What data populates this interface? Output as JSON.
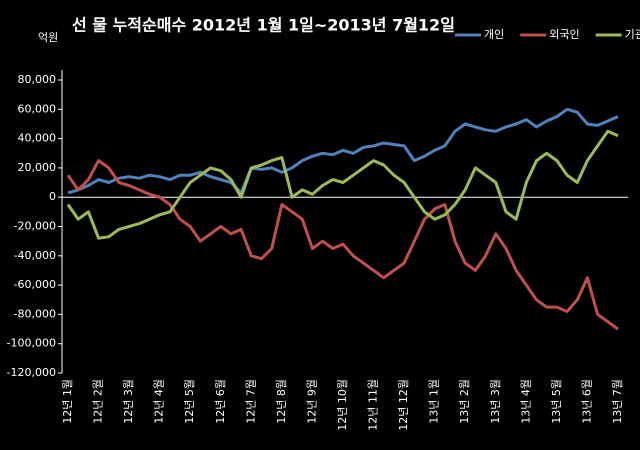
{
  "chart_data": {
    "type": "line",
    "title": "선 물 누적순매수 2012년 1월 1일~2013년 7월12일",
    "y_label": "억원",
    "categories": [
      "12년 1월",
      null,
      null,
      "12년 2월",
      null,
      null,
      "12년 3월",
      null,
      null,
      "12년 4월",
      null,
      null,
      "12년 5월",
      null,
      null,
      "12년 6월",
      null,
      null,
      "12년 7월",
      null,
      null,
      "12년 8월",
      null,
      null,
      "12년 9월",
      null,
      null,
      "12년 10월",
      null,
      null,
      "12년 11월",
      null,
      null,
      "12년 12월",
      null,
      null,
      "13년 1월",
      null,
      null,
      "13년 2월",
      null,
      null,
      "13년 3월",
      null,
      null,
      "13년 4월",
      null,
      null,
      "13년 5월",
      null,
      null,
      "13년 6월",
      null,
      null,
      "13년 7월"
    ],
    "series": [
      {
        "name": "개인",
        "color": "#4f81bd",
        "values": [
          3000,
          5000,
          8000,
          12000,
          10000,
          13000,
          14000,
          13000,
          15000,
          14000,
          12000,
          15000,
          15000,
          17000,
          14000,
          12000,
          10000,
          3000,
          20000,
          19000,
          20000,
          17000,
          20000,
          25000,
          28000,
          30000,
          29000,
          32000,
          30000,
          34000,
          35000,
          37000,
          36000,
          35000,
          25000,
          28000,
          32000,
          35000,
          45000,
          50000,
          48000,
          46000,
          45000,
          48000,
          50000,
          53000,
          48000,
          52000,
          55000,
          60000,
          58000,
          50000,
          49000,
          52000,
          55000
        ]
      },
      {
        "name": "외국인",
        "color": "#c0504d",
        "values": [
          15000,
          5000,
          12000,
          25000,
          20000,
          10000,
          8000,
          5000,
          2000,
          0,
          -5000,
          -15000,
          -20000,
          -30000,
          -25000,
          -20000,
          -25000,
          -22000,
          -40000,
          -42000,
          -35000,
          -5000,
          -10000,
          -15000,
          -35000,
          -30000,
          -35000,
          -32000,
          -40000,
          -45000,
          -50000,
          -55000,
          -50000,
          -45000,
          -30000,
          -15000,
          -8000,
          -5000,
          -30000,
          -45000,
          -50000,
          -40000,
          -25000,
          -35000,
          -50000,
          -60000,
          -70000,
          -75000,
          -75000,
          -78000,
          -70000,
          -55000,
          -80000,
          -85000,
          -90000
        ]
      },
      {
        "name": "기관",
        "color": "#9bbb59",
        "values": [
          -5000,
          -15000,
          -10000,
          -28000,
          -27000,
          -22000,
          -20000,
          -18000,
          -15000,
          -12000,
          -10000,
          0,
          10000,
          15000,
          20000,
          18000,
          12000,
          0,
          20000,
          22000,
          25000,
          27000,
          0,
          5000,
          2000,
          8000,
          12000,
          10000,
          15000,
          20000,
          25000,
          22000,
          15000,
          10000,
          0,
          -10000,
          -15000,
          -12000,
          -5000,
          5000,
          20000,
          15000,
          10000,
          -10000,
          -15000,
          10000,
          25000,
          30000,
          25000,
          15000,
          10000,
          25000,
          35000,
          45000,
          42000
        ]
      }
    ],
    "ylim": [
      -120000,
      80000
    ],
    "yticks": [
      {
        "value": -120000,
        "label": "-120,000"
      },
      {
        "value": -100000,
        "label": "-100,000"
      },
      {
        "value": -80000,
        "label": "-80,000"
      },
      {
        "value": -60000,
        "label": "-60,000"
      },
      {
        "value": -40000,
        "label": "-40,000"
      },
      {
        "value": -20000,
        "label": "-20,000"
      },
      0,
      {
        "value": 20000,
        "label": "20,000"
      },
      {
        "value": 40000,
        "label": "40,000"
      },
      {
        "value": 60000,
        "label": "60,000"
      },
      {
        "value": 80000,
        "label": "80,000"
      }
    ],
    "legend": "top-right"
  }
}
